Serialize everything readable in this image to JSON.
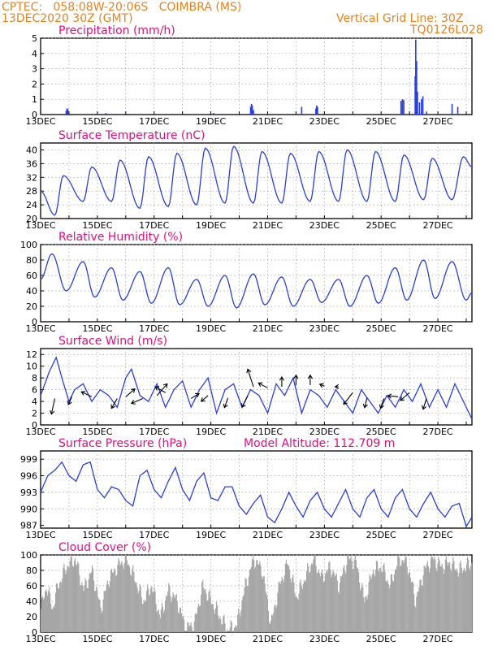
{
  "header": {
    "line1": "CPTEC:   058:08W-20:06S   COIMBRA (MS)",
    "line2": "13DEC2020 30Z (GMT)",
    "grid_note": "Vertical Grid Line: 30Z",
    "code": "TQ0126L028"
  },
  "colors": {
    "header": "#e8821e",
    "title": "#e0117a",
    "line": "#2a3fd8",
    "bars": "#2a3fd8",
    "cloud": "#a6a6a6",
    "grid": "#9a9a9a"
  },
  "x_ticks": [
    "13DEC",
    "15DEC",
    "17DEC",
    "19DEC",
    "21DEC",
    "23DEC",
    "25DEC",
    "27DEC"
  ],
  "chart_data": [
    {
      "id": "precip",
      "type": "bar",
      "title": "Precipitation (mm/h)",
      "ylabel": "",
      "xlabel": "",
      "x_unit": "day offset from 13DEC",
      "ylim": [
        0,
        5
      ],
      "yticks": [
        "0",
        "1",
        "2",
        "3",
        "4",
        "5"
      ],
      "grid": true,
      "points": [
        [
          0.9,
          0.25
        ],
        [
          0.93,
          0.4
        ],
        [
          0.96,
          0.35
        ],
        [
          2.3,
          0.1
        ],
        [
          6.1,
          0.1
        ],
        [
          7.4,
          0.5
        ],
        [
          7.43,
          0.7
        ],
        [
          7.46,
          0.6
        ],
        [
          7.5,
          0.3
        ],
        [
          9.2,
          0.5
        ],
        [
          9.7,
          0.4
        ],
        [
          9.73,
          0.6
        ],
        [
          9.76,
          0.5
        ],
        [
          12.7,
          0.9
        ],
        [
          12.75,
          1.0
        ],
        [
          12.8,
          0.95
        ],
        [
          13.2,
          2.5
        ],
        [
          13.22,
          4.9
        ],
        [
          13.25,
          3.5
        ],
        [
          13.28,
          1.5
        ],
        [
          13.35,
          0.8
        ],
        [
          13.42,
          1.0
        ],
        [
          13.47,
          1.2
        ],
        [
          13.6,
          0.2
        ],
        [
          14.5,
          0.7
        ],
        [
          14.7,
          0.5
        ]
      ]
    },
    {
      "id": "temp",
      "type": "line",
      "title": "Surface Temperature (nC)",
      "ylabel": "",
      "xlabel": "",
      "ylim": [
        20,
        42
      ],
      "ytick_values": [
        20,
        24,
        28,
        32,
        36,
        40
      ],
      "yticks": [
        "20",
        "24",
        "28",
        "32",
        "36",
        "40"
      ],
      "grid": true,
      "lows": [
        [
          0.0,
          28.0
        ],
        [
          0.5,
          21.0
        ],
        [
          1.5,
          25.0
        ],
        [
          2.5,
          25.0
        ],
        [
          3.5,
          23.0
        ],
        [
          4.5,
          23.5
        ],
        [
          5.5,
          24.0
        ],
        [
          6.5,
          24.5
        ],
        [
          7.5,
          24.5
        ],
        [
          8.5,
          24.5
        ],
        [
          9.5,
          25.0
        ],
        [
          10.5,
          25.0
        ],
        [
          11.5,
          25.0
        ],
        [
          12.5,
          25.0
        ],
        [
          13.5,
          25.5
        ],
        [
          14.5,
          25.5
        ]
      ],
      "highs": [
        [
          0.8,
          32.5
        ],
        [
          1.8,
          35.0
        ],
        [
          2.8,
          37.0
        ],
        [
          3.8,
          38.0
        ],
        [
          4.8,
          39.0
        ],
        [
          5.8,
          40.5
        ],
        [
          6.8,
          41.0
        ],
        [
          7.8,
          39.5
        ],
        [
          8.8,
          39.0
        ],
        [
          9.8,
          39.5
        ],
        [
          10.8,
          40.0
        ],
        [
          11.8,
          39.5
        ],
        [
          12.8,
          38.5
        ],
        [
          13.8,
          37.5
        ],
        [
          14.9,
          38.0
        ],
        [
          15.2,
          35.0
        ]
      ]
    },
    {
      "id": "rh",
      "type": "line",
      "title": "Relative Humidity (%)",
      "ylabel": "",
      "xlabel": "",
      "ylim": [
        0,
        100
      ],
      "ytick_values": [
        0,
        20,
        40,
        60,
        80,
        100
      ],
      "yticks": [
        "0",
        "20",
        "40",
        "60",
        "80",
        "100"
      ],
      "grid": true,
      "peaks": [
        [
          0.0,
          55
        ],
        [
          0.4,
          88
        ],
        [
          1.5,
          78
        ],
        [
          2.5,
          70
        ],
        [
          3.5,
          65
        ],
        [
          4.5,
          70
        ],
        [
          5.5,
          55
        ],
        [
          6.5,
          60
        ],
        [
          7.5,
          62
        ],
        [
          8.5,
          58
        ],
        [
          9.5,
          55
        ],
        [
          10.5,
          55
        ],
        [
          11.5,
          60
        ],
        [
          12.5,
          70
        ],
        [
          13.5,
          80
        ],
        [
          14.5,
          78
        ],
        [
          15.2,
          38
        ]
      ],
      "troughs": [
        [
          0.9,
          40
        ],
        [
          1.9,
          32
        ],
        [
          2.9,
          28
        ],
        [
          3.9,
          24
        ],
        [
          4.9,
          22
        ],
        [
          5.9,
          20
        ],
        [
          6.9,
          18
        ],
        [
          7.9,
          22
        ],
        [
          8.9,
          20
        ],
        [
          9.9,
          25
        ],
        [
          10.9,
          20
        ],
        [
          11.9,
          24
        ],
        [
          12.9,
          28
        ],
        [
          13.9,
          30
        ],
        [
          15.0,
          28
        ]
      ]
    },
    {
      "id": "wind",
      "type": "line",
      "title": "Surface Wind (m/s)",
      "ylabel": "",
      "xlabel": "",
      "ylim": [
        0,
        13
      ],
      "ytick_values": [
        0,
        2,
        4,
        6,
        8,
        10,
        12
      ],
      "yticks": [
        "0",
        "2",
        "4",
        "6",
        "8",
        "10",
        "12"
      ],
      "grid": true,
      "points": [
        [
          0.0,
          5
        ],
        [
          0.3,
          9
        ],
        [
          0.55,
          11.5
        ],
        [
          0.75,
          8
        ],
        [
          1.0,
          4
        ],
        [
          1.2,
          6
        ],
        [
          1.5,
          7
        ],
        [
          1.8,
          4
        ],
        [
          2.1,
          6
        ],
        [
          2.4,
          5
        ],
        [
          2.7,
          3
        ],
        [
          3.0,
          8
        ],
        [
          3.2,
          9.5
        ],
        [
          3.5,
          5
        ],
        [
          3.8,
          4
        ],
        [
          4.1,
          7
        ],
        [
          4.4,
          3
        ],
        [
          4.7,
          6
        ],
        [
          5.0,
          7.5
        ],
        [
          5.3,
          3
        ],
        [
          5.6,
          6
        ],
        [
          5.9,
          8
        ],
        [
          6.2,
          2
        ],
        [
          6.5,
          6
        ],
        [
          6.8,
          7
        ],
        [
          7.1,
          3
        ],
        [
          7.4,
          6
        ],
        [
          7.7,
          5
        ],
        [
          8.0,
          2
        ],
        [
          8.3,
          7
        ],
        [
          8.6,
          5
        ],
        [
          8.9,
          8
        ],
        [
          9.2,
          2
        ],
        [
          9.5,
          6
        ],
        [
          9.8,
          5
        ],
        [
          10.1,
          3
        ],
        [
          10.4,
          6
        ],
        [
          10.7,
          4
        ],
        [
          11.0,
          2
        ],
        [
          11.3,
          6
        ],
        [
          11.6,
          4
        ],
        [
          11.9,
          2
        ],
        [
          12.2,
          5
        ],
        [
          12.5,
          3
        ],
        [
          12.8,
          6
        ],
        [
          13.1,
          4
        ],
        [
          13.4,
          7
        ],
        [
          13.7,
          3
        ],
        [
          14.0,
          6
        ],
        [
          14.3,
          3
        ],
        [
          14.6,
          7
        ],
        [
          14.9,
          4
        ],
        [
          15.2,
          1
        ]
      ],
      "vectors": [
        [
          0.5,
          4.5,
          -0.3,
          -1.6
        ],
        [
          1.1,
          4.8,
          -0.3,
          -0.8
        ],
        [
          1.8,
          4.8,
          -0.9,
          0.5
        ],
        [
          2.7,
          4.5,
          -0.5,
          -1.0
        ],
        [
          3.0,
          4.8,
          0.8,
          0.8
        ],
        [
          3.6,
          4.5,
          -1.0,
          -0.5
        ],
        [
          4.1,
          5.0,
          0.9,
          1.2
        ],
        [
          4.4,
          5.5,
          -0.9,
          0.6
        ],
        [
          5.3,
          4.5,
          0.7,
          0.5
        ],
        [
          5.9,
          5.0,
          -0.6,
          -0.6
        ],
        [
          6.6,
          4.6,
          -0.3,
          -1.0
        ],
        [
          7.3,
          5.0,
          -0.5,
          -1.2
        ],
        [
          7.5,
          6.5,
          -0.5,
          1.8
        ],
        [
          8.0,
          6.3,
          -0.8,
          0.5
        ],
        [
          8.5,
          6.5,
          0.0,
          1.0
        ],
        [
          9.0,
          6.8,
          0.0,
          1.0
        ],
        [
          9.5,
          6.8,
          0.0,
          1.0
        ],
        [
          10.0,
          6.6,
          -0.4,
          0.2
        ],
        [
          10.5,
          6.5,
          -0.3,
          0
        ],
        [
          11.0,
          5.5,
          -0.8,
          -1.2
        ],
        [
          11.5,
          4.6,
          -0.2,
          -1.0
        ],
        [
          12.1,
          4.5,
          -0.3,
          -1.0
        ],
        [
          12.6,
          4.8,
          -0.9,
          0.1
        ],
        [
          13.0,
          5.5,
          -0.8,
          -0.8
        ],
        [
          13.6,
          4.5,
          -0.3,
          -1.1
        ]
      ]
    },
    {
      "id": "pres",
      "type": "line",
      "title": "Surface Pressure (hPa)",
      "annotation": "Model Altitude: 112.709  m",
      "ylabel": "",
      "xlabel": "",
      "ylim": [
        986.5,
        1000.5
      ],
      "ytick_values": [
        987,
        990,
        993,
        996,
        999
      ],
      "yticks": [
        "987",
        "990",
        "993",
        "996",
        "999"
      ],
      "grid": true,
      "points": [
        [
          0.0,
          993
        ],
        [
          0.25,
          996
        ],
        [
          0.5,
          997
        ],
        [
          0.75,
          998.5
        ],
        [
          1.0,
          996
        ],
        [
          1.25,
          995
        ],
        [
          1.5,
          998
        ],
        [
          1.75,
          998.5
        ],
        [
          2.0,
          993.5
        ],
        [
          2.25,
          992
        ],
        [
          2.5,
          994
        ],
        [
          2.75,
          993.5
        ],
        [
          3.0,
          991.5
        ],
        [
          3.25,
          990.5
        ],
        [
          3.5,
          996
        ],
        [
          3.75,
          997
        ],
        [
          4.0,
          993.5
        ],
        [
          4.25,
          992
        ],
        [
          4.5,
          995
        ],
        [
          4.75,
          997.5
        ],
        [
          5.0,
          993.5
        ],
        [
          5.25,
          991.5
        ],
        [
          5.5,
          995
        ],
        [
          5.75,
          996.5
        ],
        [
          6.0,
          992
        ],
        [
          6.25,
          991.5
        ],
        [
          6.5,
          994
        ],
        [
          6.75,
          994
        ],
        [
          7.0,
          990.5
        ],
        [
          7.25,
          989
        ],
        [
          7.5,
          991
        ],
        [
          7.75,
          992.5
        ],
        [
          8.0,
          988.5
        ],
        [
          8.25,
          987.5
        ],
        [
          8.5,
          990
        ],
        [
          8.75,
          993
        ],
        [
          9.0,
          990.5
        ],
        [
          9.25,
          988.5
        ],
        [
          9.5,
          991.5
        ],
        [
          9.75,
          993
        ],
        [
          10.0,
          990
        ],
        [
          10.25,
          988.5
        ],
        [
          10.5,
          991
        ],
        [
          10.75,
          993.5
        ],
        [
          11.0,
          990
        ],
        [
          11.25,
          988.5
        ],
        [
          11.5,
          992
        ],
        [
          11.75,
          993.5
        ],
        [
          12.0,
          990
        ],
        [
          12.25,
          988.5
        ],
        [
          12.5,
          992
        ],
        [
          12.75,
          993.5
        ],
        [
          13.0,
          990
        ],
        [
          13.25,
          988.5
        ],
        [
          13.5,
          991
        ],
        [
          13.75,
          993
        ],
        [
          14.0,
          990
        ],
        [
          14.25,
          988.5
        ],
        [
          14.5,
          990.5
        ],
        [
          14.75,
          991
        ],
        [
          15.0,
          986.8
        ],
        [
          15.2,
          988.5
        ]
      ]
    },
    {
      "id": "cloud",
      "type": "area",
      "title": "Cloud Cover (%)",
      "ylabel": "",
      "xlabel": "",
      "ylim": [
        0,
        100
      ],
      "ytick_values": [
        0,
        20,
        40,
        60,
        80,
        100
      ],
      "yticks": [
        "0",
        "20",
        "40",
        "60",
        "80",
        "100"
      ],
      "grid": true,
      "points": [
        [
          0.0,
          30
        ],
        [
          0.2,
          60
        ],
        [
          0.4,
          30
        ],
        [
          0.6,
          60
        ],
        [
          0.9,
          85
        ],
        [
          1.2,
          95
        ],
        [
          1.5,
          55
        ],
        [
          1.8,
          80
        ],
        [
          2.1,
          30
        ],
        [
          2.4,
          70
        ],
        [
          2.7,
          85
        ],
        [
          3.0,
          95
        ],
        [
          3.3,
          70
        ],
        [
          3.6,
          40
        ],
        [
          3.9,
          60
        ],
        [
          4.2,
          20
        ],
        [
          4.5,
          55
        ],
        [
          4.8,
          40
        ],
        [
          5.1,
          5
        ],
        [
          5.4,
          10
        ],
        [
          5.7,
          60
        ],
        [
          6.0,
          40
        ],
        [
          6.3,
          20
        ],
        [
          6.6,
          2
        ],
        [
          6.9,
          10
        ],
        [
          7.2,
          60
        ],
        [
          7.5,
          95
        ],
        [
          7.8,
          80
        ],
        [
          8.1,
          10
        ],
        [
          8.4,
          60
        ],
        [
          8.7,
          90
        ],
        [
          9.0,
          45
        ],
        [
          9.3,
          70
        ],
        [
          9.6,
          95
        ],
        [
          9.9,
          70
        ],
        [
          10.2,
          85
        ],
        [
          10.5,
          60
        ],
        [
          10.8,
          95
        ],
        [
          11.1,
          90
        ],
        [
          11.4,
          40
        ],
        [
          11.7,
          80
        ],
        [
          12.0,
          85
        ],
        [
          12.3,
          60
        ],
        [
          12.6,
          95
        ],
        [
          12.9,
          90
        ],
        [
          13.2,
          40
        ],
        [
          13.5,
          80
        ],
        [
          13.8,
          95
        ],
        [
          14.1,
          85
        ],
        [
          14.4,
          90
        ],
        [
          14.7,
          80
        ],
        [
          15.0,
          85
        ],
        [
          15.2,
          90
        ]
      ]
    }
  ]
}
